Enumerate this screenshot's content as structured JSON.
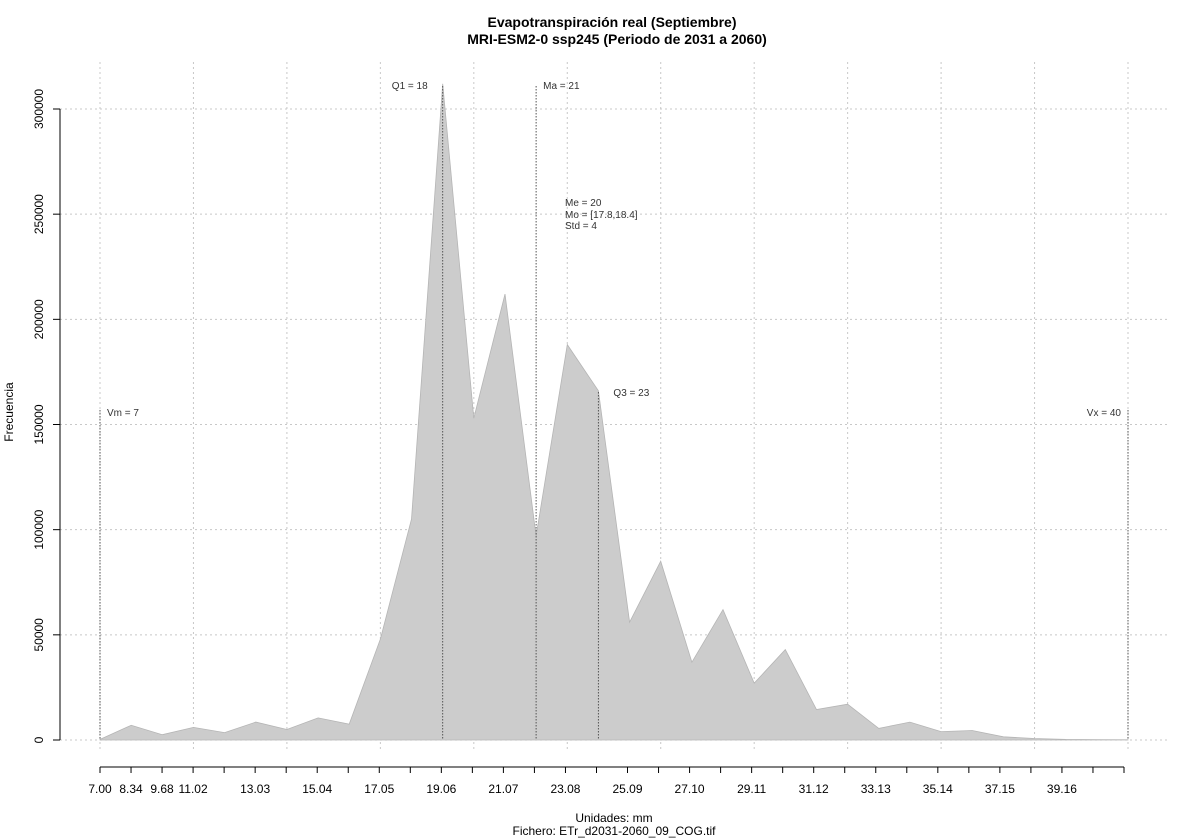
{
  "chart_data": {
    "type": "area",
    "title": "Evapotranspiración real (Septiembre)",
    "subtitle": "MRI-ESM2-0 ssp245 (Periodo de 2031 a 2060)",
    "xlabel": "Unidades: mm",
    "caption": "Fichero: ETr_d2031-2060_09_COG.tif",
    "ylabel": "Frecuencia",
    "xlim": [
      7.0,
      40.4
    ],
    "ylim": [
      0,
      310000
    ],
    "grid": true,
    "x_ticks": [
      "7.00",
      "8.34",
      "9.68",
      "11.02",
      "13.03",
      "15.04",
      "17.05",
      "19.06",
      "21.07",
      "23.08",
      "25.09",
      "27.10",
      "29.11",
      "31.12",
      "33.13",
      "35.14",
      "37.15",
      "39.16"
    ],
    "y_ticks": [
      "0",
      "50000",
      "100000",
      "150000",
      "200000",
      "250000",
      "300000"
    ],
    "x": [
      7.0,
      8.0,
      9.0,
      10.0,
      11.0,
      12.0,
      13.0,
      14.0,
      15.0,
      16.0,
      17.0,
      18.0,
      19.0,
      20.0,
      21.0,
      22.0,
      23.0,
      24.0,
      25.0,
      26.0,
      27.0,
      28.0,
      29.0,
      30.0,
      31.0,
      32.0,
      33.0,
      34.0,
      35.0,
      36.0,
      37.0,
      38.0,
      39.0,
      40.0
    ],
    "values": [
      300,
      7000,
      2500,
      6000,
      3500,
      8500,
      5000,
      10500,
      7500,
      48000,
      105000,
      312000,
      153000,
      212000,
      97000,
      188000,
      166000,
      56000,
      85000,
      37000,
      62000,
      27000,
      43000,
      14500,
      17000,
      5500,
      8500,
      4000,
      4500,
      1500,
      700,
      300,
      200,
      100
    ],
    "annotations": {
      "vm": "Vm = 7",
      "q1": "Q1 = 18",
      "ma": "Ma = 21",
      "me": "Me = 20",
      "mo": "Mo = [17.8,18.4]",
      "std": "Std = 4",
      "q3": "Q3 = 23",
      "vx": "Vx = 40"
    },
    "markers": {
      "vm": 7.0,
      "q1": 18.0,
      "ma": 21.0,
      "q3": 23.0,
      "vx": 40.0
    },
    "fill_color": "#cccccc"
  }
}
